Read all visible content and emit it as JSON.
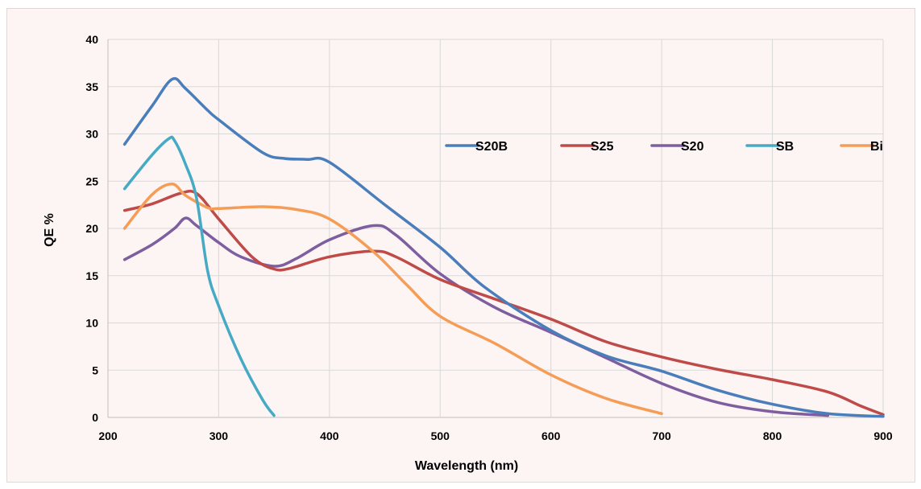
{
  "chart_data": {
    "type": "line",
    "xlabel": "Wavelength (nm)",
    "ylabel": "QE %",
    "xlim": [
      200,
      900
    ],
    "ylim": [
      0,
      40
    ],
    "xticks": [
      200,
      300,
      400,
      500,
      600,
      700,
      800,
      900
    ],
    "yticks": [
      0,
      5,
      10,
      15,
      20,
      25,
      30,
      35,
      40
    ],
    "grid": true,
    "legend_position": "top-right",
    "series": [
      {
        "name": "S20B",
        "color": "#4a7ebb",
        "points": [
          [
            215,
            28.9
          ],
          [
            240,
            33
          ],
          [
            258,
            35.8
          ],
          [
            270,
            34.8
          ],
          [
            290,
            32.5
          ],
          [
            300,
            31.5
          ],
          [
            340,
            28
          ],
          [
            360,
            27.4
          ],
          [
            380,
            27.3
          ],
          [
            400,
            27
          ],
          [
            450,
            22.5
          ],
          [
            500,
            18
          ],
          [
            540,
            13.8
          ],
          [
            600,
            9.2
          ],
          [
            650,
            6.5
          ],
          [
            700,
            4.9
          ],
          [
            750,
            2.9
          ],
          [
            800,
            1.4
          ],
          [
            850,
            0.4
          ],
          [
            900,
            0.1
          ]
        ]
      },
      {
        "name": "S25",
        "color": "#be4b48",
        "points": [
          [
            215,
            21.9
          ],
          [
            240,
            22.6
          ],
          [
            265,
            23.7
          ],
          [
            280,
            23.7
          ],
          [
            300,
            21
          ],
          [
            330,
            17
          ],
          [
            350,
            15.7
          ],
          [
            365,
            15.8
          ],
          [
            400,
            17
          ],
          [
            440,
            17.6
          ],
          [
            460,
            17
          ],
          [
            500,
            14.6
          ],
          [
            550,
            12.5
          ],
          [
            600,
            10.4
          ],
          [
            650,
            8
          ],
          [
            700,
            6.4
          ],
          [
            750,
            5.1
          ],
          [
            800,
            4
          ],
          [
            850,
            2.7
          ],
          [
            880,
            1.2
          ],
          [
            900,
            0.3
          ]
        ]
      },
      {
        "name": "S20",
        "color": "#7d5fa0",
        "points": [
          [
            215,
            16.7
          ],
          [
            240,
            18.3
          ],
          [
            260,
            20
          ],
          [
            270,
            21.1
          ],
          [
            280,
            20.3
          ],
          [
            300,
            18.5
          ],
          [
            320,
            17
          ],
          [
            350,
            16
          ],
          [
            370,
            16.8
          ],
          [
            400,
            18.8
          ],
          [
            440,
            20.3
          ],
          [
            460,
            19.3
          ],
          [
            500,
            15.2
          ],
          [
            550,
            11.6
          ],
          [
            600,
            9
          ],
          [
            650,
            6.3
          ],
          [
            700,
            3.6
          ],
          [
            750,
            1.6
          ],
          [
            800,
            0.6
          ],
          [
            850,
            0.2
          ]
        ]
      },
      {
        "name": "SB",
        "color": "#46aac5",
        "points": [
          [
            215,
            24.2
          ],
          [
            240,
            27.8
          ],
          [
            255,
            29.5
          ],
          [
            260,
            29.3
          ],
          [
            270,
            26.8
          ],
          [
            280,
            23.2
          ],
          [
            290,
            15.5
          ],
          [
            300,
            11.8
          ],
          [
            320,
            6.2
          ],
          [
            340,
            1.8
          ],
          [
            350,
            0.2
          ]
        ]
      },
      {
        "name": "Bi",
        "color": "#f59d56",
        "points": [
          [
            215,
            20
          ],
          [
            240,
            23.6
          ],
          [
            258,
            24.7
          ],
          [
            270,
            23.5
          ],
          [
            290,
            22.2
          ],
          [
            300,
            22.1
          ],
          [
            340,
            22.3
          ],
          [
            370,
            22
          ],
          [
            400,
            21
          ],
          [
            440,
            17.5
          ],
          [
            470,
            14
          ],
          [
            500,
            10.7
          ],
          [
            550,
            7.8
          ],
          [
            600,
            4.5
          ],
          [
            650,
            2
          ],
          [
            700,
            0.4
          ]
        ]
      }
    ]
  }
}
